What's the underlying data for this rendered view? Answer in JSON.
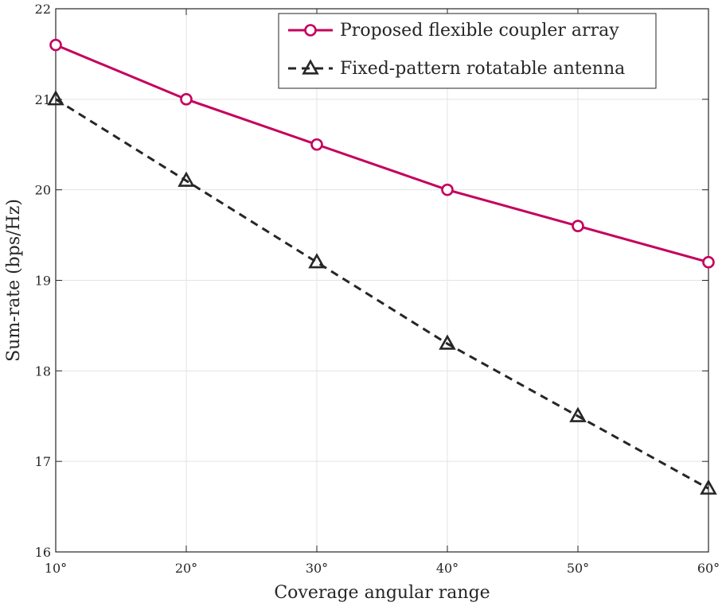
{
  "chart_data": {
    "type": "line",
    "xlabel": "Coverage angular range",
    "ylabel": "Sum-rate (bps/Hz)",
    "x": [
      10,
      20,
      30,
      40,
      50,
      60
    ],
    "x_tick_labels": [
      "10°",
      "20°",
      "30°",
      "40°",
      "50°",
      "60°"
    ],
    "xlim": [
      10,
      60
    ],
    "ylim": [
      16,
      22
    ],
    "y_ticks": [
      16,
      17,
      18,
      19,
      20,
      21,
      22
    ],
    "y_tick_labels": [
      "16",
      "17",
      "18",
      "19",
      "20",
      "21",
      "22"
    ],
    "grid": true,
    "legend_position": "top-right",
    "series": [
      {
        "name": "Proposed flexible coupler array",
        "values": [
          21.6,
          21.0,
          20.5,
          20.0,
          19.6,
          19.2
        ],
        "color": "#C5005C",
        "line_style": "solid",
        "marker": "circle"
      },
      {
        "name": "Fixed-pattern rotatable antenna",
        "values": [
          21.0,
          20.1,
          19.2,
          18.3,
          17.5,
          16.7
        ],
        "color": "#262626",
        "line_style": "dashed",
        "marker": "triangle"
      }
    ]
  }
}
